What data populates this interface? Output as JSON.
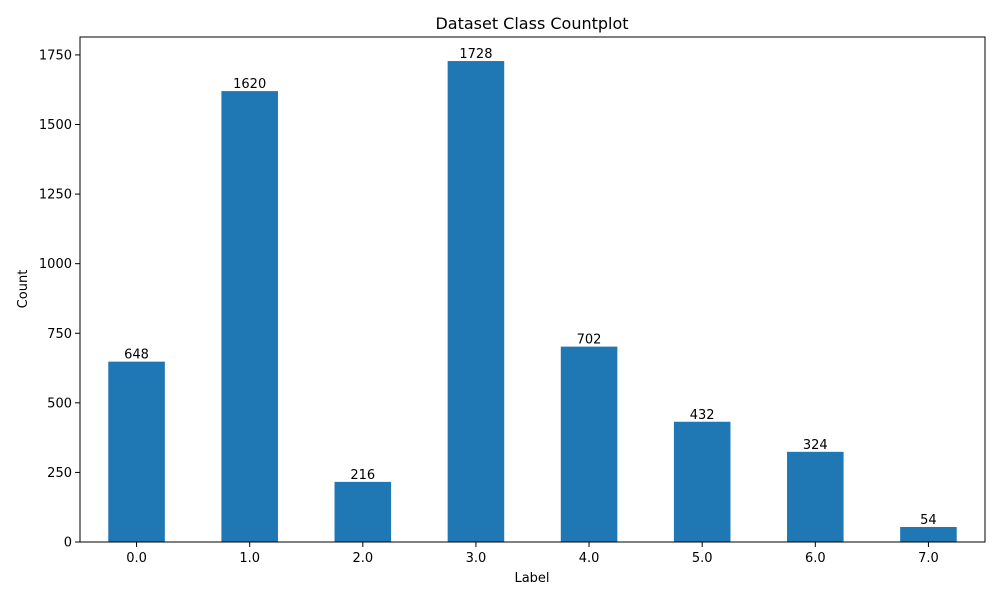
{
  "chart_data": {
    "type": "bar",
    "title": "Dataset Class Countplot",
    "xlabel": "Label",
    "ylabel": "Count",
    "categories": [
      "0.0",
      "1.0",
      "2.0",
      "3.0",
      "4.0",
      "5.0",
      "6.0",
      "7.0"
    ],
    "values": [
      648,
      1620,
      216,
      1728,
      702,
      432,
      324,
      54
    ],
    "data_labels": [
      "648",
      "1620",
      "216",
      "1728",
      "702",
      "432",
      "324",
      "54"
    ],
    "ylim": [
      0,
      1814.4
    ],
    "yticks": [
      0,
      250,
      500,
      750,
      1000,
      1250,
      1500,
      1750
    ],
    "ytick_labels": [
      "0",
      "250",
      "500",
      "750",
      "1000",
      "1250",
      "1500",
      "1750"
    ],
    "grid": false,
    "bar_color": "#1f77b4"
  }
}
